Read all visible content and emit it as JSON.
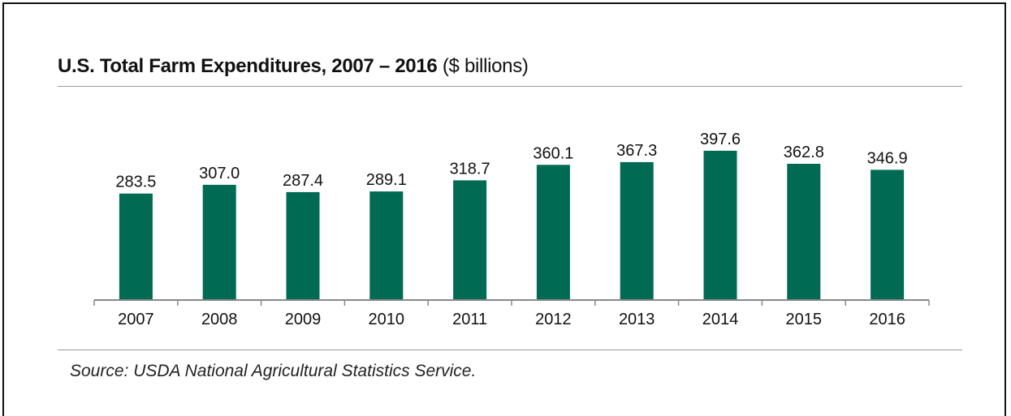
{
  "title": {
    "bold": "U.S. Total Farm Expenditures, 2007 – 2016",
    "unit": "($ billions)"
  },
  "source": "Source: USDA National Agricultural Statistics Service.",
  "colors": {
    "bar": "#006a52",
    "axis": "#888888",
    "text": "#111111"
  },
  "chart_data": {
    "type": "bar",
    "categories": [
      "2007",
      "2008",
      "2009",
      "2010",
      "2011",
      "2012",
      "2013",
      "2014",
      "2015",
      "2016"
    ],
    "values": [
      283.5,
      307.0,
      287.4,
      289.1,
      318.7,
      360.1,
      367.3,
      397.6,
      362.8,
      346.9
    ],
    "value_labels": [
      "283.5",
      "307.0",
      "287.4",
      "289.1",
      "318.7",
      "360.1",
      "367.3",
      "397.6",
      "362.8",
      "346.9"
    ],
    "title": "U.S. Total Farm Expenditures, 2007 – 2016 ($ billions)",
    "xlabel": "",
    "ylabel": "",
    "ylim": [
      0,
      425
    ],
    "grid": false,
    "legend": "none",
    "data_labels": "above-bars"
  }
}
